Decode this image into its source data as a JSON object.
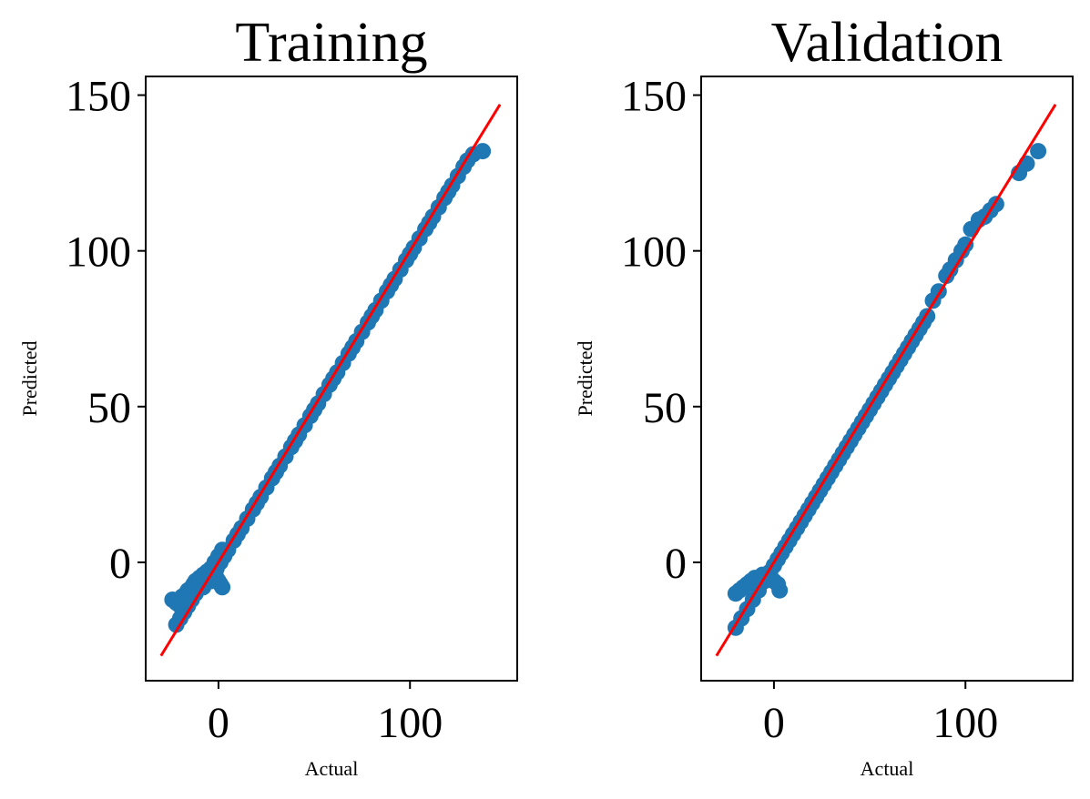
{
  "chart_data": [
    {
      "type": "scatter",
      "title": "Training",
      "xlabel": "Actual",
      "ylabel": "Predicted",
      "xlim": [
        -38,
        156
      ],
      "ylim": [
        -38,
        156
      ],
      "xticks": [
        0,
        100
      ],
      "yticks": [
        0,
        50,
        100,
        150
      ],
      "grid": false,
      "legend": "none",
      "marker_color": "#1f77b4",
      "reference_line": {
        "color": "#ff0000",
        "x": [
          -30,
          147
        ],
        "y": [
          -30,
          147
        ]
      },
      "points": {
        "x": [
          -24,
          -22,
          -20,
          -19,
          -18,
          -17,
          -16,
          -15,
          -14,
          -13,
          -12,
          -11,
          -10,
          -9,
          -8,
          -7,
          -6,
          -5,
          -4,
          -3,
          -2,
          -1,
          0,
          1,
          2,
          -22,
          -20,
          -18,
          -16,
          -14,
          -12,
          -10,
          -8,
          -6,
          -4,
          -2,
          0,
          2,
          -20,
          -16,
          -12,
          -8,
          -4,
          -1,
          1,
          3,
          5,
          8,
          10,
          12,
          15,
          18,
          20,
          22,
          25,
          28,
          30,
          32,
          35,
          38,
          40,
          42,
          45,
          48,
          50,
          52,
          55,
          58,
          60,
          62,
          65,
          68,
          70,
          72,
          75,
          78,
          80,
          82,
          85,
          88,
          90,
          92,
          95,
          98,
          100,
          102,
          105,
          108,
          110,
          112,
          115,
          118,
          120,
          122,
          125,
          128,
          130,
          133,
          138
        ],
        "y": [
          -12,
          -13,
          -12,
          -11,
          -11,
          -10,
          -9,
          -9,
          -8,
          -7,
          -6,
          -6,
          -5,
          -5,
          -4,
          -4,
          -3,
          -3,
          -3,
          -2,
          -4,
          -5,
          -6,
          -7,
          -8,
          -20,
          -18,
          -16,
          -14,
          -12,
          -10,
          -8,
          -6,
          -4,
          -2,
          0,
          2,
          4,
          -14,
          -12,
          -10,
          -8,
          -6,
          -2,
          0,
          2,
          4,
          7,
          9,
          11,
          14,
          17,
          19,
          21,
          24,
          27,
          29,
          31,
          34,
          37,
          39,
          41,
          44,
          47,
          49,
          51,
          54,
          57,
          59,
          61,
          64,
          67,
          69,
          71,
          74,
          77,
          79,
          81,
          84,
          87,
          89,
          91,
          94,
          97,
          99,
          101,
          104,
          107,
          109,
          111,
          114,
          117,
          119,
          121,
          124,
          127,
          129,
          131,
          132
        ]
      }
    },
    {
      "type": "scatter",
      "title": "Validation",
      "xlabel": "Actual",
      "ylabel": "Predicted",
      "xlim": [
        -38,
        156
      ],
      "ylim": [
        -38,
        156
      ],
      "xticks": [
        0,
        100
      ],
      "yticks": [
        0,
        50,
        100,
        150
      ],
      "grid": false,
      "legend": "none",
      "marker_color": "#1f77b4",
      "reference_line": {
        "color": "#ff0000",
        "x": [
          -30,
          147
        ],
        "y": [
          -30,
          147
        ]
      },
      "points": {
        "x": [
          -20,
          -18,
          -16,
          -14,
          -12,
          -10,
          -8,
          -6,
          -4,
          -2,
          0,
          2,
          3,
          -20,
          -17,
          -14,
          -11,
          -8,
          -5,
          -2,
          0,
          2,
          4,
          6,
          8,
          10,
          12,
          14,
          16,
          18,
          20,
          22,
          24,
          26,
          28,
          30,
          32,
          34,
          36,
          38,
          40,
          42,
          44,
          46,
          48,
          50,
          52,
          54,
          56,
          58,
          60,
          62,
          64,
          66,
          68,
          70,
          72,
          74,
          76,
          78,
          80,
          83,
          86,
          90,
          92,
          95,
          98,
          100,
          103,
          107,
          110,
          113,
          116,
          128,
          132,
          138
        ],
        "y": [
          -10,
          -9,
          -8,
          -7,
          -6,
          -5,
          -5,
          -4,
          -4,
          -5,
          -6,
          -7,
          -9,
          -21,
          -18,
          -15,
          -12,
          -9,
          -6,
          -3,
          -1,
          1,
          3,
          5,
          7,
          9,
          11,
          13,
          15,
          17,
          19,
          21,
          23,
          25,
          27,
          29,
          31,
          33,
          35,
          37,
          39,
          41,
          43,
          45,
          47,
          49,
          51,
          53,
          55,
          57,
          59,
          61,
          63,
          65,
          67,
          69,
          71,
          73,
          75,
          77,
          79,
          84,
          87,
          92,
          94,
          97,
          100,
          102,
          107,
          110,
          111,
          113,
          115,
          125,
          128,
          132
        ]
      }
    }
  ]
}
